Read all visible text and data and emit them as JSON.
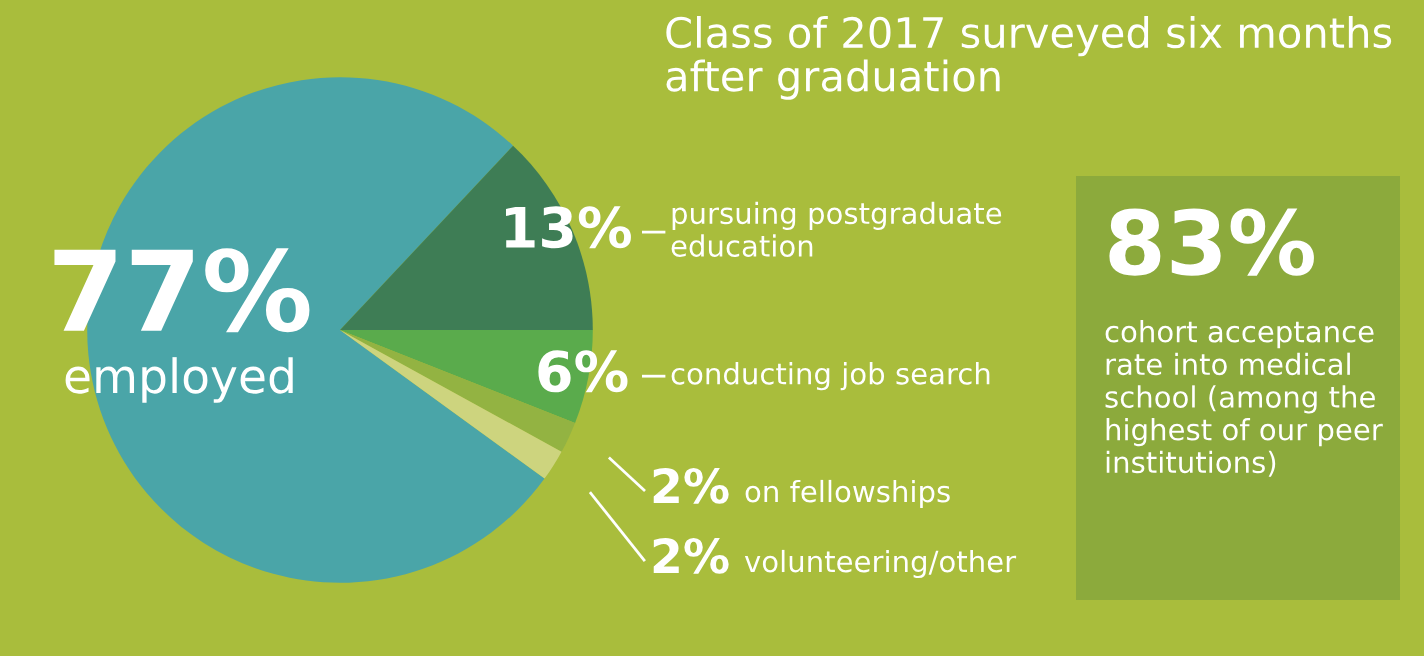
{
  "chart_data": {
    "type": "pie",
    "title": "Class of 2017 surveyed six months\nafter graduation",
    "categories": [
      "employed",
      "pursuing postgraduate\neducation",
      "conducting job search",
      "on fellowships",
      "volunteering/other"
    ],
    "values": [
      77,
      13,
      6,
      2,
      2
    ],
    "value_labels": [
      "77%",
      "13%",
      "6%",
      "2%",
      "2%"
    ],
    "colors": [
      "#4aa5a8",
      "#3e7d55",
      "#5aab4c",
      "#93b342",
      "#cdd47e"
    ],
    "annotations": [
      "83%",
      "cohort acceptance\nrate into medical\nschool (among the\nhighest of our peer\ninstitutions)"
    ]
  }
}
